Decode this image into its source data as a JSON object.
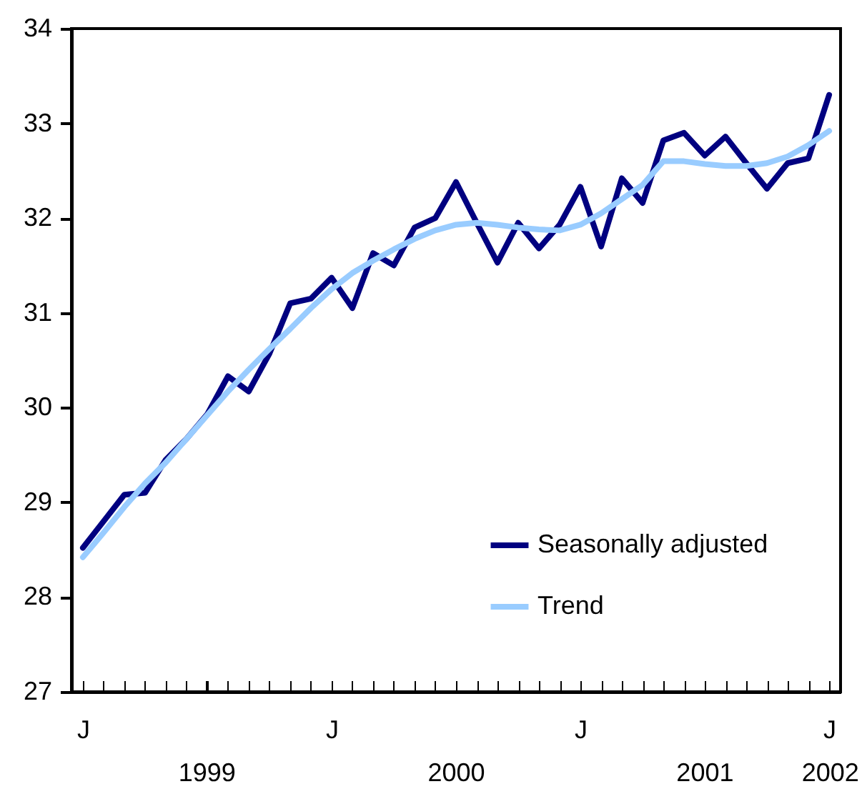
{
  "chart_data": {
    "type": "line",
    "categories": [
      "J",
      null,
      null,
      null,
      null,
      null,
      null,
      null,
      null,
      null,
      null,
      null,
      "J",
      null,
      null,
      null,
      null,
      null,
      null,
      null,
      null,
      null,
      null,
      null,
      "J",
      null,
      null,
      null,
      null,
      null,
      null,
      null,
      null,
      null,
      null,
      null,
      "J"
    ],
    "series": [
      {
        "name": "Seasonally adjusted",
        "color": "#000080",
        "values": [
          28.52,
          28.8,
          29.08,
          29.1,
          29.45,
          29.67,
          29.93,
          30.33,
          30.17,
          30.57,
          31.1,
          31.15,
          31.37,
          31.05,
          31.63,
          31.5,
          31.9,
          32.0,
          32.38,
          31.95,
          31.53,
          31.95,
          31.68,
          31.93,
          32.33,
          31.7,
          32.42,
          32.16,
          32.82,
          32.9,
          32.66,
          32.86,
          32.58,
          32.31,
          32.58,
          32.63,
          33.3
        ]
      },
      {
        "name": "Trend",
        "color": "#99ccff",
        "values": [
          28.42,
          28.68,
          28.95,
          29.2,
          29.42,
          29.67,
          29.92,
          30.17,
          30.4,
          30.62,
          30.83,
          31.05,
          31.25,
          31.42,
          31.55,
          31.67,
          31.78,
          31.87,
          31.93,
          31.95,
          31.93,
          31.9,
          31.88,
          31.87,
          31.93,
          32.05,
          32.2,
          32.35,
          32.6,
          32.6,
          32.57,
          32.55,
          32.55,
          32.58,
          32.65,
          32.77,
          32.92
        ]
      }
    ],
    "x2lim": [
      "1998-12-15",
      "2002-01-17"
    ],
    "x2ticks": [
      {
        "value": "1999-07",
        "label": "1999"
      },
      {
        "value": "2000-07",
        "label": "2000"
      },
      {
        "value": "2001-07",
        "label": "2001"
      },
      {
        "value": "2002-01",
        "label": "2002"
      }
    ],
    "ylim": [
      27,
      34
    ],
    "yticks": [
      27,
      28,
      29,
      30,
      31,
      32,
      33,
      34
    ],
    "grid": false,
    "legend": "bottom right",
    "line_style": "solid",
    "marker": "none"
  }
}
